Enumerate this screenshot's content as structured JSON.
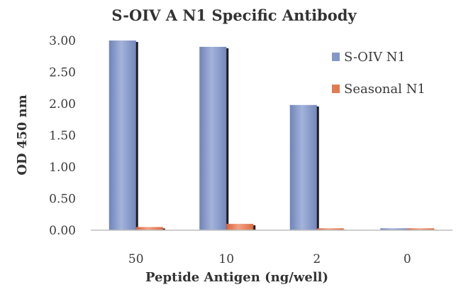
{
  "chart_data": {
    "type": "bar",
    "title": "S-OIV A N1 Specific Antibody",
    "xlabel": "Peptide Antigen (ng/well)",
    "ylabel": "OD 450 nm",
    "categories": [
      "50",
      "10",
      "2",
      "0"
    ],
    "series": [
      {
        "name": "S-OIV N1",
        "values": [
          3.0,
          2.9,
          1.98,
          0.03
        ],
        "color": "#8498c8"
      },
      {
        "name": "Seasonal N1",
        "values": [
          0.05,
          0.1,
          0.03,
          0.03
        ],
        "color": "#e27a53"
      }
    ],
    "ylim": [
      0,
      3
    ],
    "yticks": [
      "0.00",
      "0.50",
      "1.00",
      "1.50",
      "2.00",
      "2.50",
      "3.00"
    ],
    "grid": false,
    "legend_position": "right"
  }
}
